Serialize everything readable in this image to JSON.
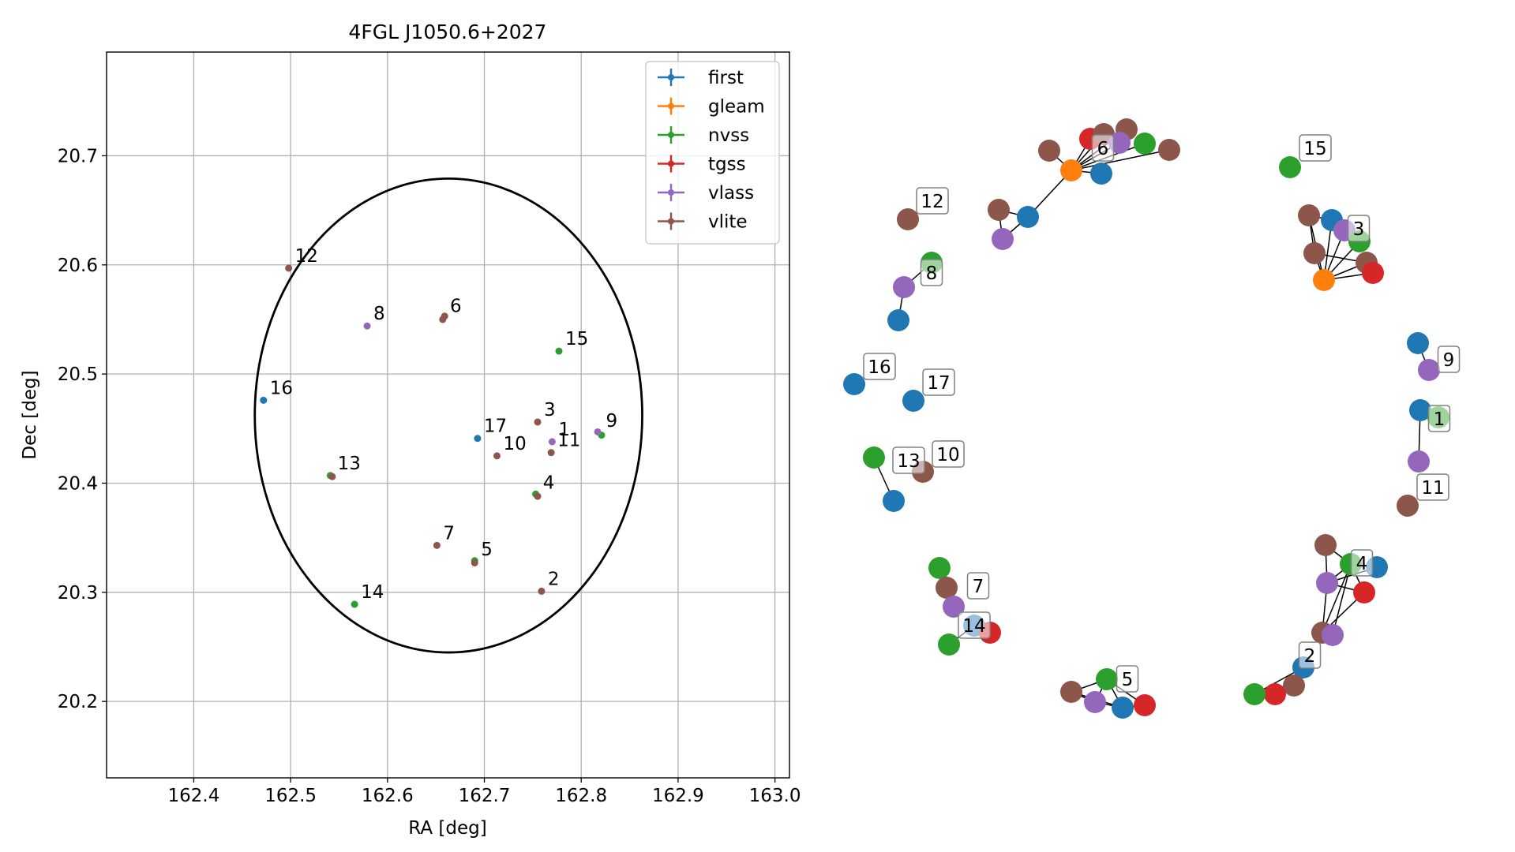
{
  "colors": {
    "first": "#1f77b4",
    "gleam": "#ff7f0e",
    "nvss": "#2ca02c",
    "tgss": "#d62728",
    "vlass": "#9467bd",
    "vlite": "#8c564b",
    "grid": "#b0b0b0",
    "ellipse": "#000000",
    "edge": "#000000"
  },
  "chart_data": [
    {
      "type": "scatter",
      "title": "4FGL J1050.6+2027",
      "xlabel": "RA [deg]",
      "ylabel": "Dec [deg]",
      "xlim": [
        162.31,
        163.015
      ],
      "ylim": [
        20.13,
        20.795
      ],
      "xticks": [
        162.4,
        162.5,
        162.6,
        162.7,
        162.8,
        162.9,
        163.0
      ],
      "xtick_labels": [
        "162.4",
        "162.5",
        "162.6",
        "162.7",
        "162.8",
        "162.9",
        "163.0"
      ],
      "yticks": [
        20.2,
        20.3,
        20.4,
        20.5,
        20.6,
        20.7
      ],
      "ytick_labels": [
        "20.2",
        "20.3",
        "20.4",
        "20.5",
        "20.6",
        "20.7"
      ],
      "grid": true,
      "legend_position": "top-right",
      "legend": [
        "first",
        "gleam",
        "nvss",
        "tgss",
        "vlass",
        "vlite"
      ],
      "ellipse": {
        "center": [
          162.663,
          20.462
        ],
        "ra_semi_axis": 0.2,
        "dec_semi_axis": 0.217
      },
      "series": [
        {
          "name": "first",
          "points": [
            [
              162.472,
              20.476
            ],
            [
              162.693,
              20.441
            ]
          ]
        },
        {
          "name": "gleam",
          "points": []
        },
        {
          "name": "nvss",
          "points": [
            [
              162.777,
              20.521
            ],
            [
              162.541,
              20.407
            ],
            [
              162.753,
              20.39
            ],
            [
              162.69,
              20.329
            ],
            [
              162.566,
              20.289
            ],
            [
              162.821,
              20.444
            ]
          ]
        },
        {
          "name": "tgss",
          "points": []
        },
        {
          "name": "vlass",
          "points": [
            [
              162.579,
              20.544
            ],
            [
              162.77,
              20.438
            ],
            [
              162.817,
              20.447
            ]
          ]
        },
        {
          "name": "vlite",
          "points": [
            [
              162.498,
              20.597
            ],
            [
              162.657,
              20.55
            ],
            [
              162.659,
              20.553
            ],
            [
              162.755,
              20.456
            ],
            [
              162.769,
              20.428
            ],
            [
              162.713,
              20.425
            ],
            [
              162.755,
              20.388
            ],
            [
              162.651,
              20.343
            ],
            [
              162.69,
              20.327
            ],
            [
              162.759,
              20.301
            ],
            [
              162.543,
              20.406
            ]
          ]
        }
      ],
      "labels": [
        {
          "text": "12",
          "at": [
            162.498,
            20.597
          ]
        },
        {
          "text": "8",
          "at": [
            162.579,
            20.544
          ]
        },
        {
          "text": "6",
          "at": [
            162.658,
            20.551
          ]
        },
        {
          "text": "15",
          "at": [
            162.777,
            20.521
          ]
        },
        {
          "text": "16",
          "at": [
            162.472,
            20.476
          ]
        },
        {
          "text": "17",
          "at": [
            162.693,
            20.441
          ]
        },
        {
          "text": "3",
          "at": [
            162.755,
            20.456
          ]
        },
        {
          "text": "1",
          "at": [
            162.77,
            20.438
          ]
        },
        {
          "text": "9",
          "at": [
            162.819,
            20.446
          ]
        },
        {
          "text": "10",
          "at": [
            162.713,
            20.425
          ]
        },
        {
          "text": "11",
          "at": [
            162.769,
            20.428
          ]
        },
        {
          "text": "13",
          "at": [
            162.542,
            20.407
          ]
        },
        {
          "text": "4",
          "at": [
            162.754,
            20.389
          ]
        },
        {
          "text": "7",
          "at": [
            162.651,
            20.343
          ]
        },
        {
          "text": "5",
          "at": [
            162.69,
            20.328
          ]
        },
        {
          "text": "2",
          "at": [
            162.759,
            20.301
          ]
        },
        {
          "text": "14",
          "at": [
            162.566,
            20.289
          ]
        }
      ]
    },
    {
      "type": "network",
      "groups": [
        {
          "label": "6",
          "nodes": [
            "vlite",
            "tgss",
            "vlite",
            "vlite",
            "vlass",
            "nvss",
            "vlite",
            "gleam",
            "first",
            "vlite",
            "first",
            "vlass"
          ],
          "edges": [
            [
              7,
              0
            ],
            [
              7,
              1
            ],
            [
              7,
              2
            ],
            [
              7,
              3
            ],
            [
              7,
              4
            ],
            [
              7,
              5
            ],
            [
              7,
              6
            ],
            [
              7,
              8
            ],
            [
              7,
              10
            ],
            [
              10,
              9
            ],
            [
              10,
              11
            ],
            [
              9,
              11
            ]
          ]
        },
        {
          "label": "15",
          "nodes": [
            "nvss"
          ],
          "edges": []
        },
        {
          "label": "12",
          "nodes": [
            "vlite"
          ],
          "edges": []
        },
        {
          "label": "3",
          "nodes": [
            "vlite",
            "first",
            "vlass",
            "nvss",
            "vlite",
            "vlite",
            "gleam",
            "tgss"
          ],
          "edges": [
            [
              6,
              0
            ],
            [
              6,
              1
            ],
            [
              6,
              2
            ],
            [
              6,
              3
            ],
            [
              6,
              4
            ],
            [
              6,
              5
            ],
            [
              6,
              7
            ],
            [
              0,
              1
            ],
            [
              1,
              2
            ],
            [
              2,
              3
            ],
            [
              4,
              5
            ],
            [
              5,
              7
            ],
            [
              0,
              4
            ],
            [
              1,
              3
            ]
          ]
        },
        {
          "label": "8",
          "nodes": [
            "nvss",
            "vlass",
            "first"
          ],
          "edges": [
            [
              0,
              1
            ],
            [
              1,
              2
            ]
          ]
        },
        {
          "label": "9",
          "nodes": [
            "first",
            "vlass"
          ],
          "edges": [
            [
              0,
              1
            ]
          ]
        },
        {
          "label": "1",
          "nodes": [
            "first",
            "nvss",
            "vlass"
          ],
          "edges": [
            [
              0,
              1
            ],
            [
              0,
              2
            ]
          ]
        },
        {
          "label": "16",
          "nodes": [
            "first"
          ],
          "edges": []
        },
        {
          "label": "17",
          "nodes": [
            "first"
          ],
          "edges": []
        },
        {
          "label": "13",
          "nodes": [
            "nvss",
            "first"
          ],
          "edges": [
            [
              0,
              1
            ]
          ]
        },
        {
          "label": "10",
          "nodes": [
            "vlite"
          ],
          "edges": []
        },
        {
          "label": "11",
          "nodes": [
            "vlite"
          ],
          "edges": []
        },
        {
          "label": "4",
          "nodes": [
            "vlite",
            "nvss",
            "first",
            "vlass",
            "tgss",
            "vlite",
            "vlass"
          ],
          "edges": [
            [
              0,
              1
            ],
            [
              0,
              3
            ],
            [
              1,
              2
            ],
            [
              1,
              3
            ],
            [
              1,
              4
            ],
            [
              1,
              5
            ],
            [
              2,
              3
            ],
            [
              3,
              4
            ],
            [
              4,
              5
            ],
            [
              5,
              6
            ],
            [
              3,
              5
            ],
            [
              1,
              6
            ]
          ]
        },
        {
          "label": "7",
          "nodes": [
            "nvss",
            "vlite",
            "vlass"
          ],
          "edges": [
            [
              0,
              1
            ],
            [
              1,
              2
            ]
          ]
        },
        {
          "label": "14",
          "nodes": [
            "first",
            "tgss",
            "nvss"
          ],
          "edges": [
            [
              0,
              1
            ],
            [
              0,
              2
            ]
          ]
        },
        {
          "label": "5",
          "nodes": [
            "nvss",
            "vlite",
            "vlass",
            "first",
            "tgss"
          ],
          "edges": [
            [
              0,
              1
            ],
            [
              0,
              2
            ],
            [
              0,
              3
            ],
            [
              1,
              2
            ],
            [
              1,
              3
            ],
            [
              2,
              3
            ],
            [
              3,
              4
            ],
            [
              0,
              4
            ]
          ]
        },
        {
          "label": "2",
          "nodes": [
            "first",
            "vlite",
            "tgss",
            "nvss"
          ],
          "edges": [
            [
              0,
              1
            ],
            [
              0,
              2
            ],
            [
              0,
              3
            ],
            [
              1,
              2
            ],
            [
              2,
              3
            ]
          ]
        }
      ]
    }
  ]
}
